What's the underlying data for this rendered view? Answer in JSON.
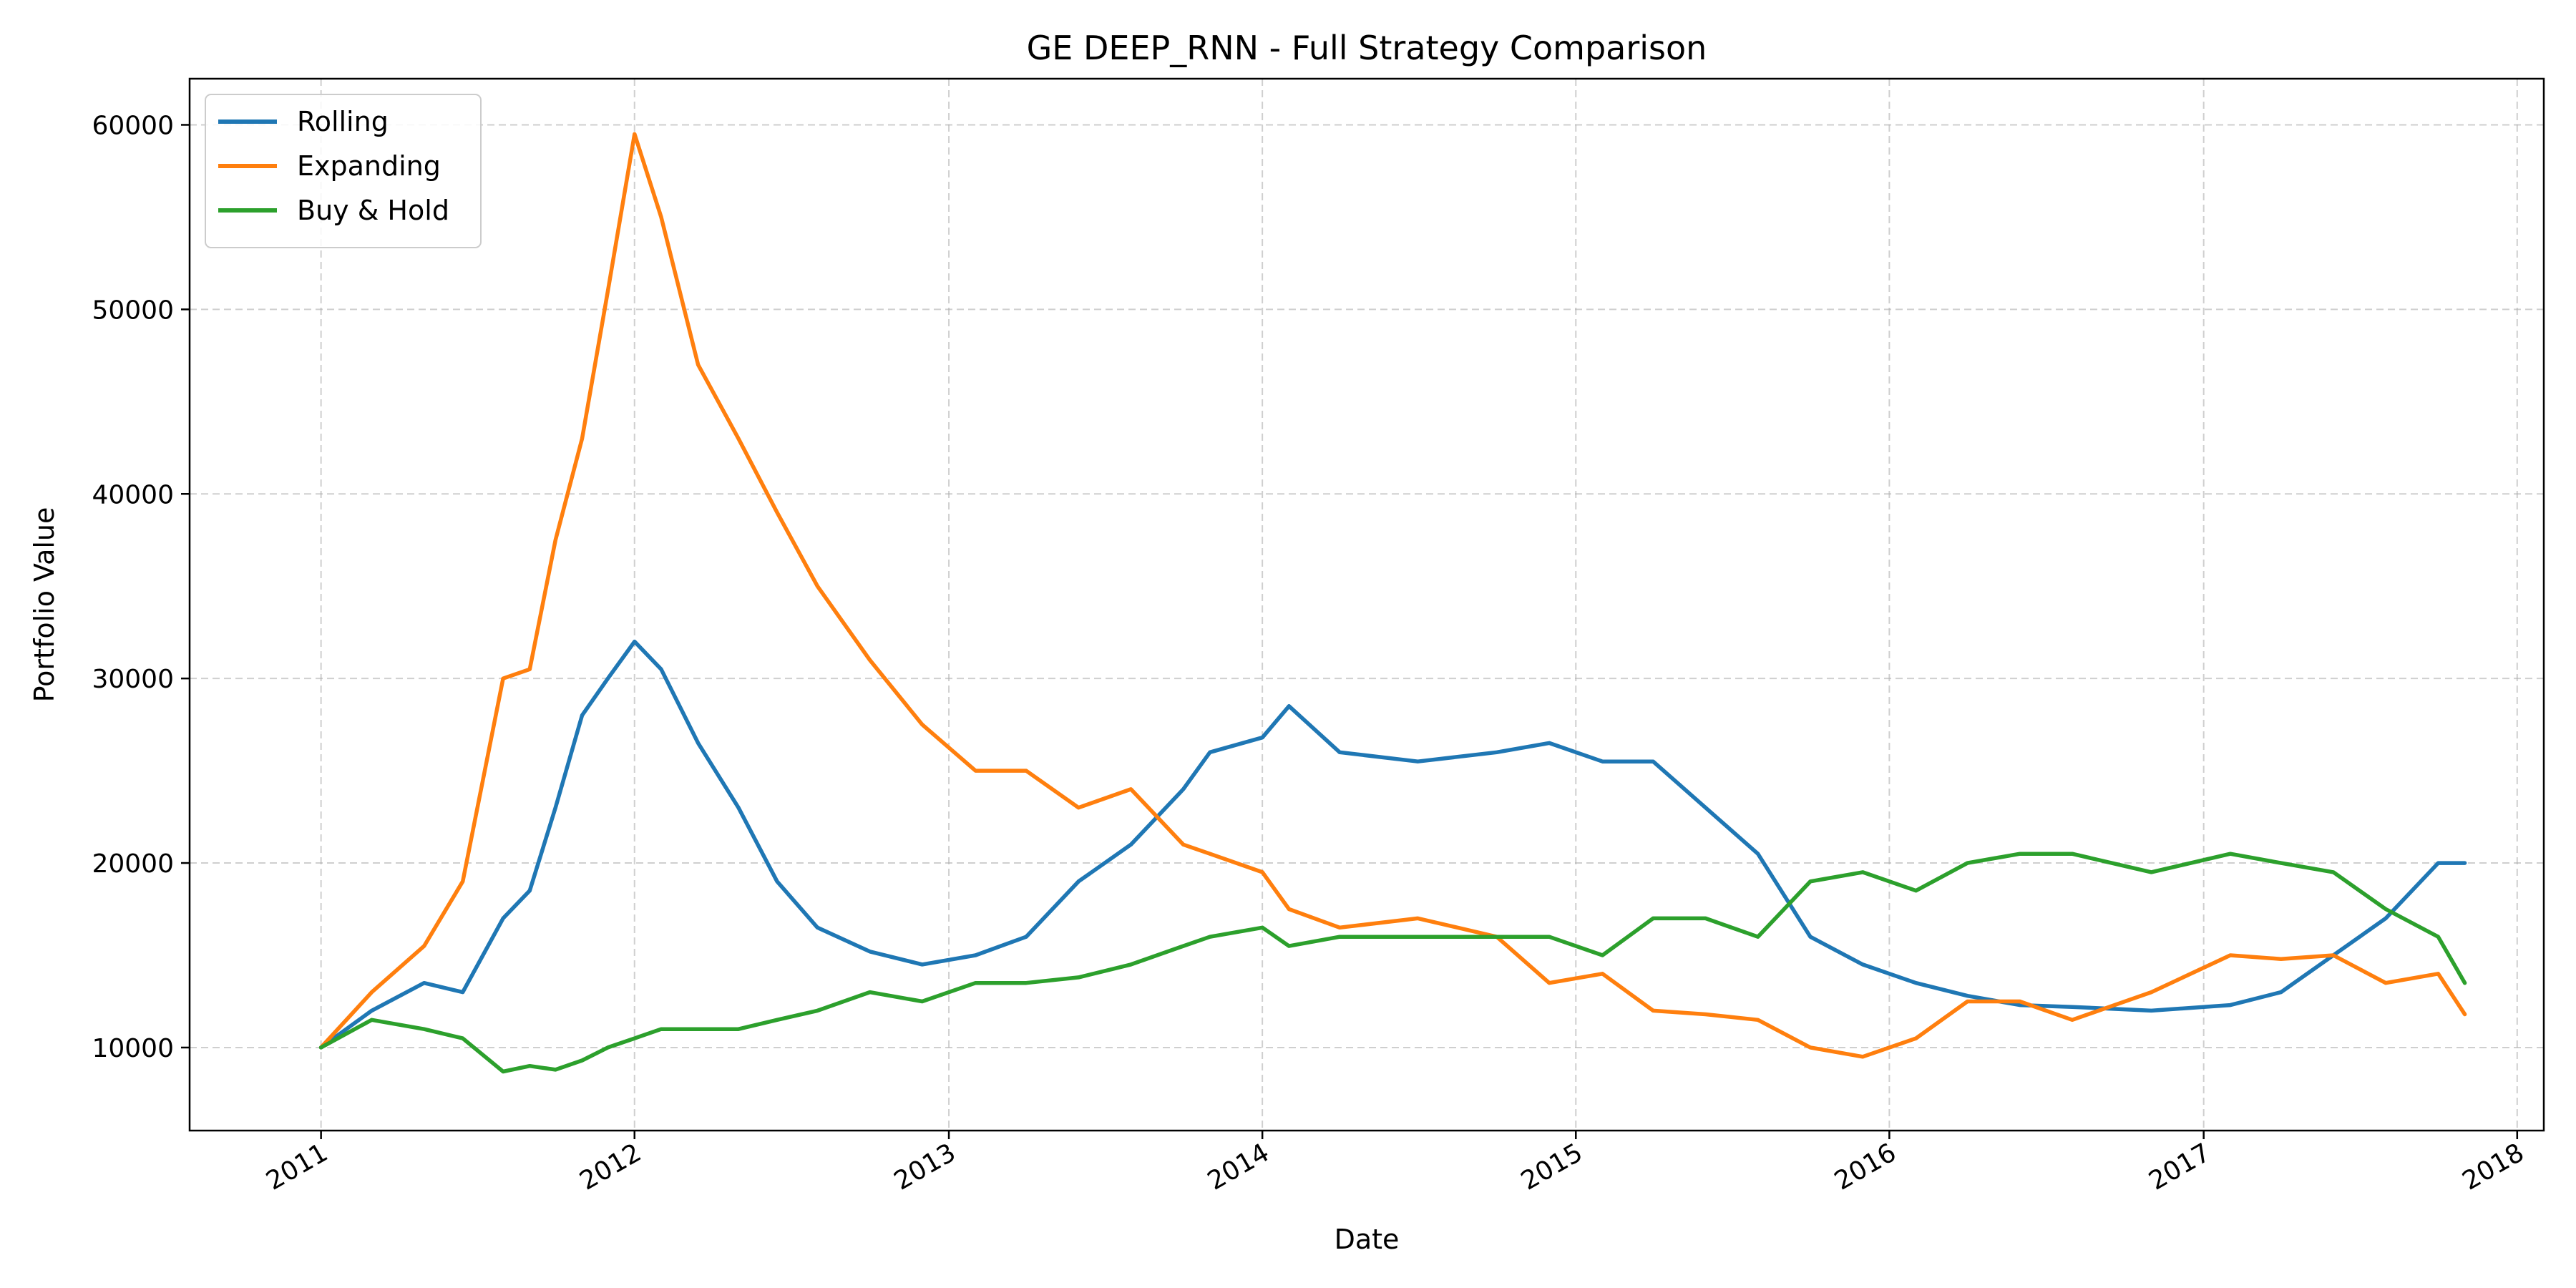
{
  "chart_data": {
    "type": "line",
    "title": "GE DEEP_RNN - Full Strategy Comparison",
    "xlabel": "Date",
    "ylabel": "Portfolio Value",
    "xlim": [
      "2010-08-01",
      "2018-02-01"
    ],
    "ylim": [
      5500,
      62500
    ],
    "x_ticks": [
      "2011",
      "2012",
      "2013",
      "2014",
      "2015",
      "2016",
      "2017",
      "2018"
    ],
    "y_ticks": [
      10000,
      20000,
      30000,
      40000,
      50000,
      60000
    ],
    "grid": true,
    "legend": "top-left",
    "series": [
      {
        "name": "Rolling",
        "color": "#1f77b4",
        "x": [
          "2011-01-01",
          "2011-03-01",
          "2011-05-01",
          "2011-06-15",
          "2011-08-01",
          "2011-09-01",
          "2011-10-01",
          "2011-11-01",
          "2011-12-01",
          "2012-01-01",
          "2012-02-01",
          "2012-03-15",
          "2012-05-01",
          "2012-06-15",
          "2012-08-01",
          "2012-10-01",
          "2012-12-01",
          "2013-02-01",
          "2013-04-01",
          "2013-06-01",
          "2013-08-01",
          "2013-10-01",
          "2013-11-01",
          "2014-01-01",
          "2014-02-01",
          "2014-04-01",
          "2014-07-01",
          "2014-10-01",
          "2014-12-01",
          "2015-02-01",
          "2015-04-01",
          "2015-06-01",
          "2015-08-01",
          "2015-10-01",
          "2015-12-01",
          "2016-02-01",
          "2016-04-01",
          "2016-06-01",
          "2016-08-01",
          "2016-11-01",
          "2017-02-01",
          "2017-04-01",
          "2017-06-01",
          "2017-08-01",
          "2017-10-01",
          "2017-11-01"
        ],
        "y": [
          10000,
          12000,
          13500,
          13000,
          17000,
          18500,
          23000,
          28000,
          30000,
          32000,
          30500,
          26500,
          23000,
          19000,
          16500,
          15200,
          14500,
          15000,
          16000,
          19000,
          21000,
          24000,
          26000,
          26800,
          28500,
          26000,
          25500,
          26000,
          26500,
          25500,
          25500,
          23000,
          20500,
          16000,
          14500,
          13500,
          12800,
          12300,
          12200,
          12000,
          12300,
          13000,
          15000,
          17000,
          20000,
          20000
        ]
      },
      {
        "name": "Expanding",
        "color": "#ff7f0e",
        "x": [
          "2011-01-01",
          "2011-03-01",
          "2011-05-01",
          "2011-06-15",
          "2011-08-01",
          "2011-09-01",
          "2011-10-01",
          "2011-11-01",
          "2011-12-01",
          "2012-01-01",
          "2012-02-01",
          "2012-03-15",
          "2012-05-01",
          "2012-06-15",
          "2012-08-01",
          "2012-10-01",
          "2012-12-01",
          "2013-02-01",
          "2013-04-01",
          "2013-06-01",
          "2013-08-01",
          "2013-10-01",
          "2013-11-01",
          "2014-01-01",
          "2014-02-01",
          "2014-04-01",
          "2014-07-01",
          "2014-10-01",
          "2014-12-01",
          "2015-02-01",
          "2015-04-01",
          "2015-06-01",
          "2015-08-01",
          "2015-10-01",
          "2015-12-01",
          "2016-02-01",
          "2016-04-01",
          "2016-06-01",
          "2016-08-01",
          "2016-11-01",
          "2017-02-01",
          "2017-04-01",
          "2017-06-01",
          "2017-08-01",
          "2017-10-01",
          "2017-11-01"
        ],
        "y": [
          10000,
          13000,
          15500,
          19000,
          30000,
          30500,
          37500,
          43000,
          51000,
          59500,
          55000,
          47000,
          43000,
          39000,
          35000,
          31000,
          27500,
          25000,
          25000,
          23000,
          24000,
          21000,
          20500,
          19500,
          17500,
          16500,
          17000,
          16000,
          13500,
          14000,
          12000,
          11800,
          11500,
          10000,
          9500,
          10500,
          12500,
          12500,
          11500,
          13000,
          15000,
          14800,
          15000,
          13500,
          14000,
          11800
        ]
      },
      {
        "name": "Buy & Hold",
        "color": "#2ca02c",
        "x": [
          "2011-01-01",
          "2011-03-01",
          "2011-05-01",
          "2011-06-15",
          "2011-08-01",
          "2011-09-01",
          "2011-10-01",
          "2011-11-01",
          "2011-12-01",
          "2012-01-01",
          "2012-02-01",
          "2012-03-15",
          "2012-05-01",
          "2012-06-15",
          "2012-08-01",
          "2012-10-01",
          "2012-12-01",
          "2013-02-01",
          "2013-04-01",
          "2013-06-01",
          "2013-08-01",
          "2013-10-01",
          "2013-11-01",
          "2014-01-01",
          "2014-02-01",
          "2014-04-01",
          "2014-07-01",
          "2014-10-01",
          "2014-12-01",
          "2015-02-01",
          "2015-04-01",
          "2015-06-01",
          "2015-08-01",
          "2015-10-01",
          "2015-12-01",
          "2016-02-01",
          "2016-04-01",
          "2016-06-01",
          "2016-08-01",
          "2016-11-01",
          "2017-02-01",
          "2017-04-01",
          "2017-06-01",
          "2017-08-01",
          "2017-10-01",
          "2017-11-01"
        ],
        "y": [
          10000,
          11500,
          11000,
          10500,
          8700,
          9000,
          8800,
          9300,
          10000,
          10500,
          11000,
          11000,
          11000,
          11500,
          12000,
          13000,
          12500,
          13500,
          13500,
          13800,
          14500,
          15500,
          16000,
          16500,
          15500,
          16000,
          16000,
          16000,
          16000,
          15000,
          17000,
          17000,
          16000,
          19000,
          19500,
          18500,
          20000,
          20500,
          20500,
          19500,
          20500,
          20000,
          19500,
          17500,
          16000,
          13500
        ]
      }
    ]
  }
}
